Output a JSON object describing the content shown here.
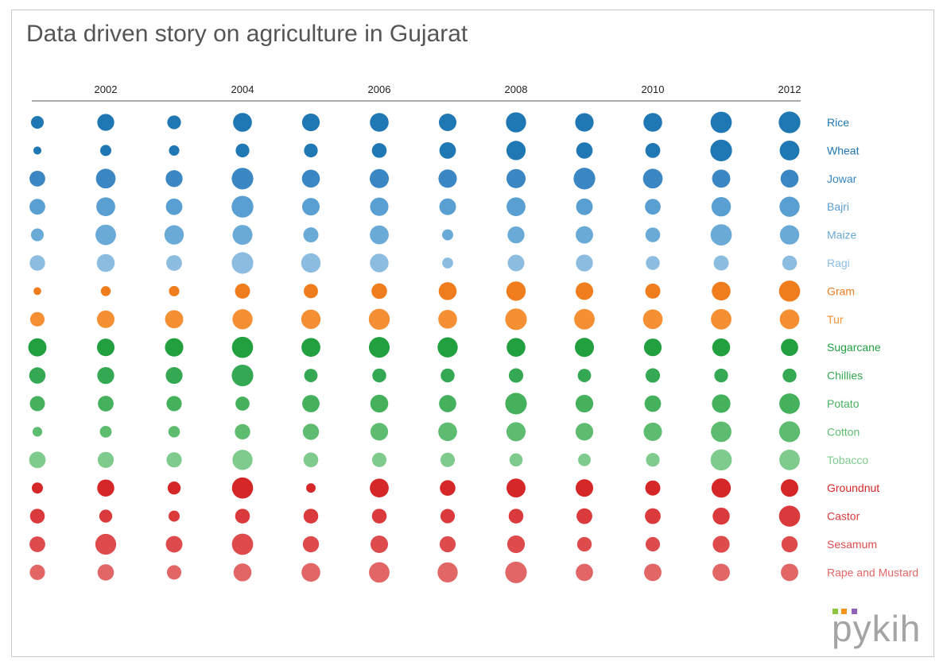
{
  "title": "Data driven story on agriculture in Gujarat",
  "logo": {
    "text": "pykih",
    "square_colors": [
      "#8dc63f",
      "#f7941d",
      "#8e63b7"
    ]
  },
  "chart_data": {
    "type": "scatter",
    "encoding": "bubble size = relative magnitude (0-10 scale, estimated)",
    "x": [
      2001,
      2002,
      2003,
      2004,
      2005,
      2006,
      2007,
      2008,
      2009,
      2010,
      2011,
      2012
    ],
    "x_tick_labels": [
      "",
      "2002",
      "",
      "2004",
      "",
      "2006",
      "",
      "2008",
      "",
      "2010",
      "",
      "2012"
    ],
    "legend_position": "right",
    "series": [
      {
        "name": "Rice",
        "color": "#1f77b4",
        "values": [
          3.3,
          5.8,
          3.8,
          7.2,
          6.3,
          7.1,
          6.2,
          8.2,
          6.9,
          7.1,
          9.1,
          9.5
        ]
      },
      {
        "name": "Wheat",
        "color": "#1f77b4",
        "values": [
          1.3,
          2.5,
          2.2,
          3.8,
          3.8,
          4.4,
          5.5,
          7.5,
          5.4,
          4.5,
          9.5,
          7.9
        ]
      },
      {
        "name": "Jowar",
        "color": "#3a87c4",
        "values": [
          5.0,
          7.8,
          5.8,
          9.4,
          6.5,
          7.4,
          6.8,
          7.4,
          9.5,
          7.8,
          6.7,
          6.5
        ]
      },
      {
        "name": "Bajri",
        "color": "#5a9fd1",
        "values": [
          5.0,
          7.2,
          5.5,
          9.6,
          6.2,
          6.8,
          5.6,
          7.2,
          5.6,
          5.0,
          7.6,
          8.2
        ]
      },
      {
        "name": "Maize",
        "color": "#6aaad6",
        "values": [
          3.3,
          8.5,
          7.6,
          8.0,
          4.6,
          7.2,
          2.5,
          5.8,
          6.1,
          4.4,
          9.1,
          7.6
        ]
      },
      {
        "name": "Ragi",
        "color": "#8cbde0",
        "values": [
          4.8,
          6.5,
          5.0,
          9.4,
          7.6,
          7.0,
          2.4,
          5.6,
          5.8,
          3.9,
          4.6,
          4.4
        ]
      },
      {
        "name": "Gram",
        "color": "#f07d1d",
        "values": [
          1.2,
          2.0,
          2.2,
          4.6,
          4.1,
          4.9,
          6.5,
          7.6,
          6.2,
          4.6,
          7.1,
          9.0
        ]
      },
      {
        "name": "Tur",
        "color": "#f58f33",
        "values": [
          4.2,
          6.2,
          6.7,
          8.2,
          7.6,
          8.9,
          7.1,
          9.4,
          8.5,
          7.8,
          8.5,
          7.8
        ]
      },
      {
        "name": "Sugarcane",
        "color": "#22a040",
        "values": [
          6.7,
          6.2,
          6.8,
          9.0,
          7.2,
          8.7,
          8.2,
          7.1,
          7.4,
          6.3,
          6.5,
          6.0
        ]
      },
      {
        "name": "Chillies",
        "color": "#35a853",
        "values": [
          5.4,
          5.8,
          5.7,
          9.4,
          3.6,
          3.9,
          3.9,
          4.2,
          3.6,
          4.2,
          3.8,
          3.9
        ]
      },
      {
        "name": "Potato",
        "color": "#45b15d",
        "values": [
          4.6,
          5.0,
          4.7,
          4.0,
          6.1,
          6.5,
          6.0,
          9.4,
          6.3,
          5.5,
          6.9,
          8.5
        ]
      },
      {
        "name": "Cotton",
        "color": "#5ebc70",
        "values": [
          1.9,
          2.8,
          2.7,
          4.8,
          5.3,
          6.3,
          7.1,
          7.4,
          6.3,
          6.8,
          8.5,
          8.8
        ]
      },
      {
        "name": "Tobacco",
        "color": "#7ecb8d",
        "values": [
          5.5,
          5.2,
          4.7,
          8.2,
          4.4,
          4.2,
          4.2,
          3.5,
          3.2,
          3.8,
          9.1,
          8.5
        ]
      },
      {
        "name": "Groundnut",
        "color": "#d62728",
        "values": [
          2.5,
          5.9,
          3.4,
          9.0,
          1.8,
          7.2,
          4.9,
          7.3,
          6.2,
          4.6,
          7.5,
          6.2
        ]
      },
      {
        "name": "Castor",
        "color": "#da3a3b",
        "values": [
          4.4,
          3.4,
          2.5,
          4.4,
          4.4,
          4.4,
          4.2,
          4.4,
          5.0,
          5.0,
          5.9,
          9.0
        ]
      },
      {
        "name": "Sesamum",
        "color": "#de4b4c",
        "values": [
          5.0,
          8.8,
          5.6,
          9.1,
          5.3,
          6.2,
          5.2,
          6.3,
          4.3,
          4.2,
          5.8,
          5.3
        ]
      },
      {
        "name": "Rape and Mustard",
        "color": "#e36667",
        "values": [
          4.7,
          5.4,
          4.2,
          6.5,
          7.1,
          8.5,
          8.2,
          9.4,
          6.0,
          6.1,
          6.1,
          6.1
        ]
      }
    ]
  }
}
